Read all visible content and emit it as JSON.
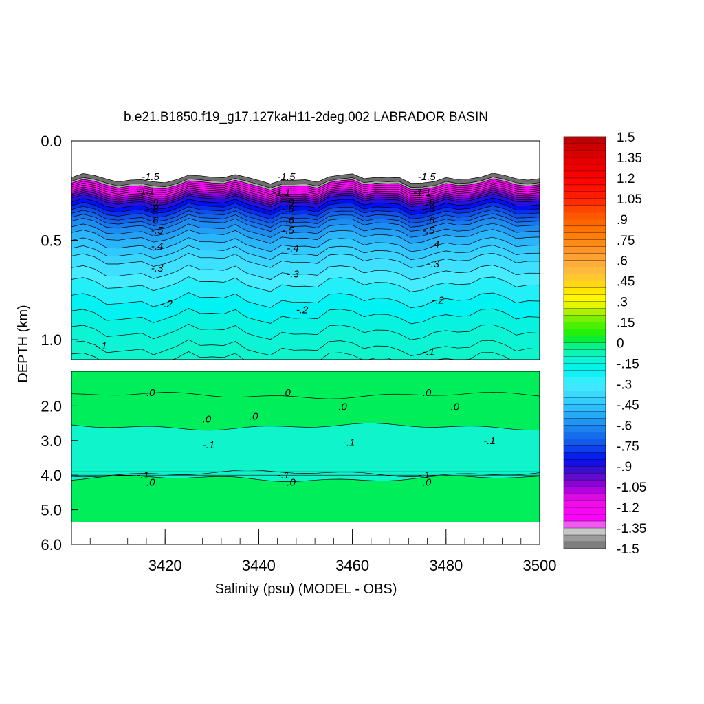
{
  "chart_data": {
    "type": "heatmap",
    "title": "b.e21.B1850.f19_g17.127kaH11-2deg.002 LABRADOR BASIN",
    "xlabel": "Salinity (psu) (MODEL - OBS)",
    "ylabel": "DEPTH (km)",
    "x_ticks": [
      "3420",
      "3440",
      "3460",
      "3480",
      "3500"
    ],
    "x_tick_values": [
      3420,
      3440,
      3460,
      3480,
      3500
    ],
    "xlim": [
      3400,
      3500
    ],
    "y_ticks_top": [
      "0.0",
      "0.5",
      "1.0"
    ],
    "y_tick_values_top": [
      0.0,
      0.5,
      1.0
    ],
    "ylim_top": [
      0.0,
      1.1
    ],
    "y_ticks_bottom": [
      "2.0",
      "3.0",
      "4.0",
      "5.0",
      "6.0"
    ],
    "y_tick_values_bottom": [
      2.0,
      3.0,
      4.0,
      5.0,
      6.0
    ],
    "ylim_bottom": [
      1.0,
      6.0
    ],
    "colorbar": {
      "min": -1.5,
      "max": 1.5,
      "step": 0.05,
      "labels": [
        "1.5",
        "1.35",
        "1.2",
        "1.05",
        ".9",
        ".75",
        ".6",
        ".45",
        ".3",
        ".15",
        "0",
        "-.15",
        "-.3",
        "-.45",
        "-.6",
        "-.75",
        "-.9",
        "-1.05",
        "-1.2",
        "-1.35",
        "-1.5"
      ],
      "label_values": [
        1.5,
        1.35,
        1.2,
        1.05,
        0.9,
        0.75,
        0.6,
        0.45,
        0.3,
        0.15,
        0,
        -0.15,
        -0.3,
        -0.45,
        -0.6,
        -0.75,
        -0.9,
        -1.05,
        -1.2,
        -1.35,
        -1.5
      ]
    },
    "top_profile": {
      "depths": [
        0.19,
        0.21,
        0.22,
        0.23,
        0.24,
        0.25,
        0.26,
        0.27,
        0.28,
        0.29,
        0.3,
        0.32,
        0.34,
        0.36,
        0.38,
        0.4,
        0.42,
        0.45,
        0.48,
        0.52,
        0.56,
        0.6,
        0.66,
        0.72,
        0.8,
        0.88,
        0.96,
        1.04,
        1.1
      ],
      "values": [
        -1.5,
        -1.4,
        -1.3,
        -1.25,
        -1.2,
        -1.15,
        -1.1,
        -1.05,
        -1.0,
        -0.95,
        -0.9,
        -0.85,
        -0.8,
        -0.75,
        -0.7,
        -0.65,
        -0.6,
        -0.55,
        -0.5,
        -0.45,
        -0.4,
        -0.35,
        -0.3,
        -0.25,
        -0.2,
        -0.15,
        -0.12,
        -0.1,
        -0.1
      ]
    },
    "bottom_bands": [
      {
        "depth_from": 1.0,
        "depth_to": 1.7,
        "value": 0.0
      },
      {
        "depth_from": 1.7,
        "depth_to": 2.6,
        "value": 0.0
      },
      {
        "depth_from": 2.6,
        "depth_to": 3.95,
        "value": -0.1
      },
      {
        "depth_from": 3.95,
        "depth_to": 4.1,
        "value": -0.1
      },
      {
        "depth_from": 4.1,
        "depth_to": 5.35,
        "value": 0.0
      }
    ],
    "contour_labels": [
      {
        "text": "-1.5",
        "x": 3415,
        "depth": 0.18
      },
      {
        "text": "-1.1",
        "x": 3414,
        "depth": 0.25
      },
      {
        "text": "-.9",
        "x": 3416,
        "depth": 0.31
      },
      {
        "text": "-.8",
        "x": 3416,
        "depth": 0.34
      },
      {
        "text": "-.6",
        "x": 3416,
        "depth": 0.4
      },
      {
        "text": "-.5",
        "x": 3417,
        "depth": 0.45
      },
      {
        "text": "-.4",
        "x": 3417,
        "depth": 0.53
      },
      {
        "text": "-.3",
        "x": 3417,
        "depth": 0.64
      },
      {
        "text": "-.2",
        "x": 3419,
        "depth": 0.82
      },
      {
        "text": "-.1",
        "x": 3405,
        "depth": 1.03
      },
      {
        "text": "-1.5",
        "x": 3444,
        "depth": 0.18
      },
      {
        "text": "-1.1",
        "x": 3443,
        "depth": 0.26
      },
      {
        "text": "-.9",
        "x": 3445,
        "depth": 0.31
      },
      {
        "text": "-.8",
        "x": 3445,
        "depth": 0.34
      },
      {
        "text": "-.6",
        "x": 3445,
        "depth": 0.4
      },
      {
        "text": "-.5",
        "x": 3445,
        "depth": 0.45
      },
      {
        "text": "-.4",
        "x": 3446,
        "depth": 0.54
      },
      {
        "text": "-.3",
        "x": 3446,
        "depth": 0.67
      },
      {
        "text": "-.2",
        "x": 3448,
        "depth": 0.85
      },
      {
        "text": "-1.5",
        "x": 3474,
        "depth": 0.18
      },
      {
        "text": "-1.1",
        "x": 3473,
        "depth": 0.26
      },
      {
        "text": "-.9",
        "x": 3475,
        "depth": 0.31
      },
      {
        "text": "-.8",
        "x": 3475,
        "depth": 0.34
      },
      {
        "text": "-.6",
        "x": 3475,
        "depth": 0.4
      },
      {
        "text": "-.5",
        "x": 3475,
        "depth": 0.45
      },
      {
        "text": "-.4",
        "x": 3476,
        "depth": 0.52
      },
      {
        "text": "-.3",
        "x": 3476,
        "depth": 0.62
      },
      {
        "text": "-.2",
        "x": 3477,
        "depth": 0.8
      },
      {
        "text": "-.1",
        "x": 3475,
        "depth": 1.06
      },
      {
        "text": ".0",
        "x": 3416,
        "depth": 1.62
      },
      {
        "text": ".0",
        "x": 3445,
        "depth": 1.62
      },
      {
        "text": ".0",
        "x": 3475,
        "depth": 1.62
      },
      {
        "text": ".0",
        "x": 3428,
        "depth": 2.38
      },
      {
        "text": ".0",
        "x": 3438,
        "depth": 2.3
      },
      {
        "text": ".0",
        "x": 3457,
        "depth": 2.02
      },
      {
        "text": ".0",
        "x": 3481,
        "depth": 2.02
      },
      {
        "text": "-.1",
        "x": 3428,
        "depth": 3.12
      },
      {
        "text": "-.1",
        "x": 3458,
        "depth": 3.05
      },
      {
        "text": "-.1",
        "x": 3488,
        "depth": 3.0
      },
      {
        "text": "-.1",
        "x": 3414,
        "depth": 4.0
      },
      {
        "text": "-.1",
        "x": 3444,
        "depth": 4.0
      },
      {
        "text": "-.1",
        "x": 3474,
        "depth": 4.0
      },
      {
        "text": ".0",
        "x": 3416,
        "depth": 4.2
      },
      {
        "text": ".0",
        "x": 3446,
        "depth": 4.2
      },
      {
        "text": ".0",
        "x": 3475,
        "depth": 4.2
      }
    ]
  }
}
